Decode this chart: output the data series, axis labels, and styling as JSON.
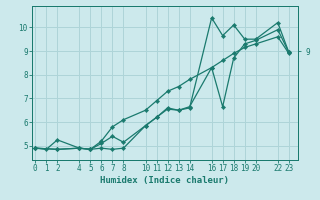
{
  "xlabel": "Humidex (Indice chaleur)",
  "background_color": "#cce9ec",
  "grid_color": "#aed4d8",
  "line_color": "#1a7a6e",
  "xticks": [
    0,
    1,
    2,
    4,
    5,
    6,
    7,
    8,
    10,
    11,
    12,
    13,
    14,
    16,
    17,
    18,
    19,
    20,
    22,
    23
  ],
  "yticks": [
    5,
    6,
    7,
    8,
    9,
    10
  ],
  "xlim": [
    -0.3,
    23.8
  ],
  "ylim": [
    4.4,
    10.9
  ],
  "line1_x": [
    0,
    1,
    2,
    4,
    5,
    6,
    7,
    8,
    10,
    11,
    12,
    13,
    14,
    16,
    17,
    18,
    19,
    20,
    22,
    23
  ],
  "line1_y": [
    4.9,
    4.85,
    5.25,
    4.9,
    4.85,
    4.9,
    4.85,
    4.9,
    5.85,
    6.2,
    6.55,
    6.5,
    6.6,
    10.4,
    9.65,
    10.1,
    9.5,
    9.5,
    10.2,
    8.95
  ],
  "line2_x": [
    0,
    2,
    4,
    5,
    6,
    7,
    8,
    10,
    11,
    12,
    13,
    14,
    16,
    17,
    18,
    19,
    20,
    22,
    23
  ],
  "line2_y": [
    4.9,
    4.85,
    4.9,
    4.85,
    5.2,
    5.8,
    6.1,
    6.5,
    6.9,
    7.3,
    7.5,
    7.8,
    8.3,
    8.6,
    8.9,
    9.15,
    9.3,
    9.6,
    8.9
  ],
  "line3_x": [
    0,
    2,
    4,
    5,
    6,
    7,
    8,
    10,
    11,
    12,
    13,
    14,
    16,
    17,
    18,
    19,
    20,
    22,
    23
  ],
  "line3_y": [
    4.9,
    4.85,
    4.9,
    4.85,
    5.1,
    5.4,
    5.15,
    5.85,
    6.2,
    6.6,
    6.5,
    6.65,
    8.3,
    6.65,
    8.7,
    9.3,
    9.45,
    9.9,
    8.95
  ],
  "marker": "D",
  "markersize": 2.2,
  "linewidth": 0.9,
  "tick_fontsize": 5.5,
  "xlabel_fontsize": 6.5
}
